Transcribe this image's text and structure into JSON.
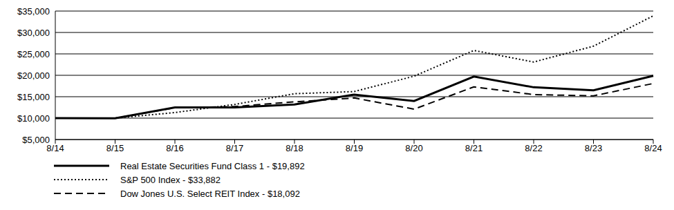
{
  "chart_data": {
    "type": "line",
    "categories": [
      "8/14",
      "8/15",
      "8/16",
      "8/17",
      "8/18",
      "8/19",
      "8/20",
      "8/21",
      "8/22",
      "8/23",
      "8/24"
    ],
    "series": [
      {
        "name": "Real Estate Securities Fund Class 1 - $19,892",
        "color": "#000000",
        "line_style": "solid",
        "values": [
          10000,
          9950,
          12500,
          12500,
          13200,
          15500,
          14000,
          19700,
          17200,
          16500,
          19892
        ]
      },
      {
        "name": "S&P 500 Index - $33,882",
        "color": "#000000",
        "line_style": "dotted",
        "values": [
          10000,
          10000,
          11300,
          13200,
          15700,
          16200,
          19800,
          25800,
          23100,
          26800,
          33882
        ]
      },
      {
        "name": "Dow Jones U.S. Select REIT Index - $18,092",
        "color": "#000000",
        "line_style": "dashed",
        "values": [
          10000,
          10000,
          12400,
          12700,
          13800,
          14700,
          12100,
          17300,
          15500,
          15200,
          18092
        ]
      }
    ],
    "ylim": [
      5000,
      35000
    ],
    "yticks": [
      {
        "value": 5000,
        "label": "$5,000"
      },
      {
        "value": 10000,
        "label": "$10,000"
      },
      {
        "value": 15000,
        "label": "$15,000"
      },
      {
        "value": 20000,
        "label": "$20,000"
      },
      {
        "value": 25000,
        "label": "$25,000"
      },
      {
        "value": 30000,
        "label": "$30,000"
      },
      {
        "value": 35000,
        "label": "$35,000"
      }
    ],
    "grid": true,
    "legend": "bottom"
  }
}
